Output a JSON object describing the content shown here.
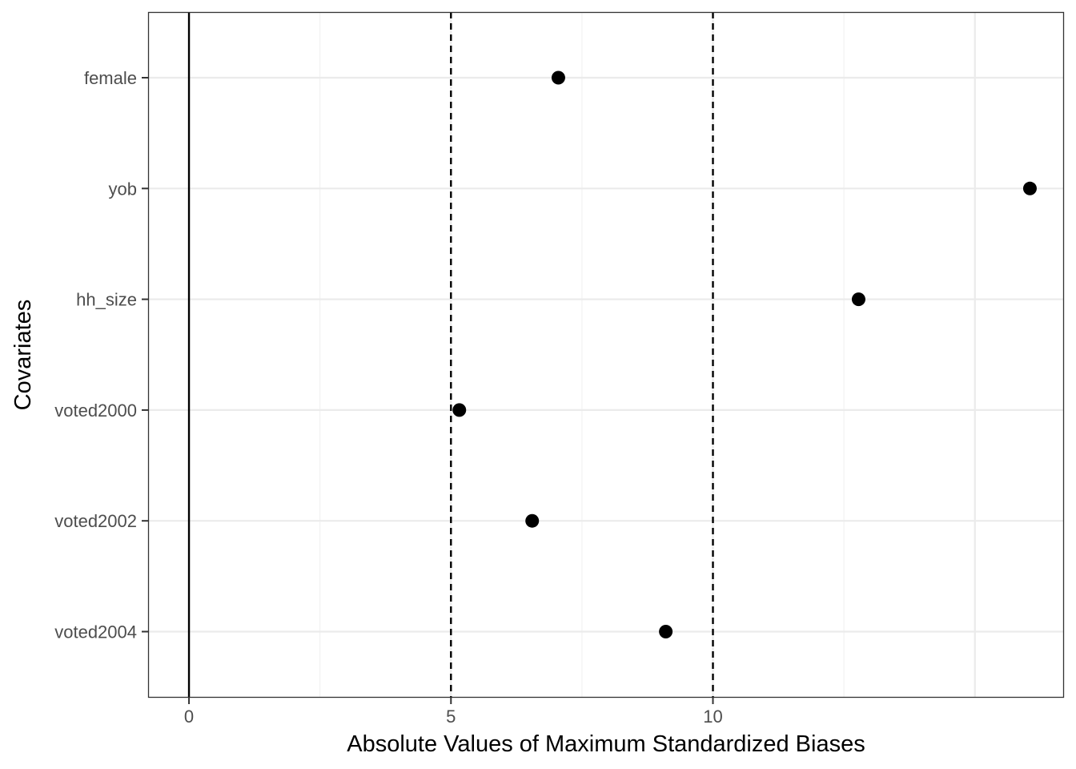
{
  "chart_data": {
    "type": "scatter",
    "title": "",
    "xlabel": "Absolute Values of Maximum Standardized Biases",
    "ylabel": "Covariates",
    "categories": [
      "female",
      "yob",
      "hh_size",
      "voted2000",
      "voted2002",
      "voted2004"
    ],
    "values": [
      7.05,
      16.05,
      12.78,
      5.16,
      6.55,
      9.1
    ],
    "xlim": [
      -0.78,
      16.7
    ],
    "x_ticks": [
      0,
      5,
      10
    ],
    "reference_lines": [
      {
        "x": 0,
        "style": "solid"
      },
      {
        "x": 5,
        "style": "dashed"
      },
      {
        "x": 10,
        "style": "dashed"
      }
    ],
    "grid": true,
    "legend": "none",
    "colors": {
      "points": "#000000",
      "grid_major": "#ebebeb",
      "grid_minor": "#f2f2f2",
      "panel_border": "#333333",
      "tick_text": "#4d4d4d"
    }
  }
}
